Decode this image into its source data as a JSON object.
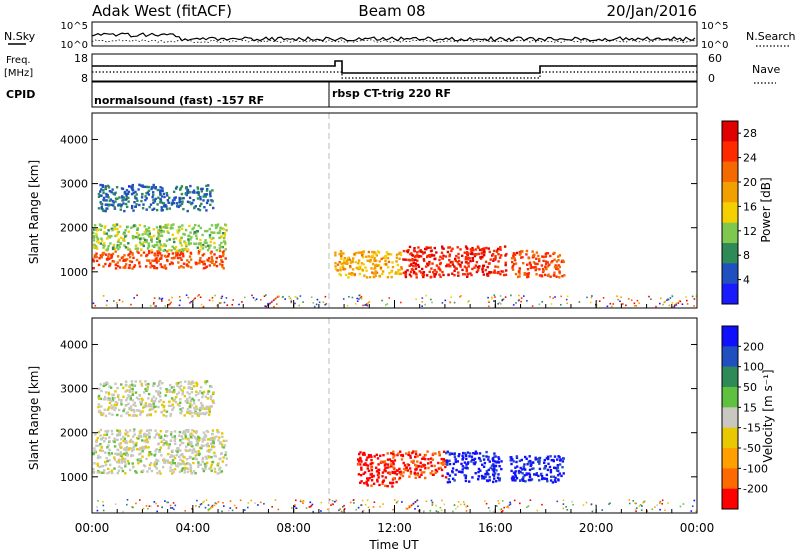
{
  "header": {
    "title_left": "Adak West (fitACF)",
    "title_center": "Beam 08",
    "title_right": "20/Jan/2016"
  },
  "nsky_panel": {
    "label_left": "N.Sky",
    "label_right": "N.Search",
    "left_ticks": [
      "10^5",
      "10^0"
    ],
    "right_ticks": [
      "10^5",
      "10^0"
    ]
  },
  "freq_panel": {
    "label_left_top": "Freq.",
    "label_left_unit": "[MHz]",
    "label_right": "Nave",
    "left_ticks": [
      "18",
      "8"
    ],
    "right_ticks": [
      "60",
      "0"
    ]
  },
  "cpid_panel": {
    "label": "CPID",
    "programs": [
      "normalsound (fast) -157 RF",
      "rbsp CT-trig 220 RF"
    ]
  },
  "colors": {
    "power": [
      "#1a1aff",
      "#2050c0",
      "#2e8b57",
      "#7ec850",
      "#f5d000",
      "#f2a000",
      "#f56a00",
      "#ff2a00",
      "#e00000"
    ],
    "velocity": [
      "#ff0000",
      "#ff6a00",
      "#ffa000",
      "#e8c800",
      "#c8c8c0",
      "#60c040",
      "#2e8b57",
      "#2050c0",
      "#1010ff"
    ]
  },
  "chart_data": [
    {
      "type": "heatmap",
      "name": "power",
      "ylabel": "Slant Range [km]",
      "xlabel": "Time UT",
      "x_ticks": [
        "00:00",
        "04:00",
        "08:00",
        "12:00",
        "16:00",
        "20:00",
        "00:00"
      ],
      "xlim_hours": [
        0,
        24
      ],
      "y_ticks": [
        1000,
        2000,
        3000,
        4000
      ],
      "ylim_km": [
        180,
        4600
      ],
      "colorbar": {
        "label": "Power [dB]",
        "ticks": [
          4,
          8,
          12,
          16,
          20,
          24,
          28
        ],
        "range": [
          0,
          30
        ]
      },
      "patches": [
        {
          "t": [
            0.0,
            5.3
          ],
          "r": [
            1100,
            1500
          ],
          "value": 24
        },
        {
          "t": [
            0.0,
            5.3
          ],
          "r": [
            1500,
            2100
          ],
          "value": 12
        },
        {
          "t": [
            0.2,
            4.8
          ],
          "r": [
            2400,
            3000
          ],
          "value": 6
        },
        {
          "t": [
            9.6,
            12.3
          ],
          "r": [
            900,
            1500
          ],
          "value": 18
        },
        {
          "t": [
            12.3,
            16.4
          ],
          "r": [
            900,
            1600
          ],
          "value": 26
        },
        {
          "t": [
            16.6,
            18.7
          ],
          "r": [
            900,
            1500
          ],
          "value": 24
        }
      ]
    },
    {
      "type": "heatmap",
      "name": "velocity",
      "ylabel": "Slant Range [km]",
      "xlabel": "Time UT",
      "x_ticks": [
        "00:00",
        "04:00",
        "08:00",
        "12:00",
        "16:00",
        "20:00",
        "00:00"
      ],
      "xlim_hours": [
        0,
        24
      ],
      "y_ticks": [
        1000,
        2000,
        3000,
        4000
      ],
      "ylim_km": [
        180,
        4600
      ],
      "colorbar": {
        "label": "Velocity [m s⁻¹]",
        "ticks": [
          "200",
          "100",
          "50",
          "15",
          "-15",
          "-50",
          "-100",
          "-200"
        ],
        "range": [
          -250,
          250
        ]
      },
      "patches": [
        {
          "t": [
            0.0,
            5.3
          ],
          "r": [
            1100,
            2100
          ],
          "value": 0
        },
        {
          "t": [
            0.2,
            4.8
          ],
          "r": [
            2400,
            3200
          ],
          "value": 0
        },
        {
          "t": [
            10.5,
            12.2
          ],
          "r": [
            800,
            1600
          ],
          "value": -220
        },
        {
          "t": [
            12.2,
            14.0
          ],
          "r": [
            1000,
            1600
          ],
          "value": -200
        },
        {
          "t": [
            14.0,
            16.2
          ],
          "r": [
            900,
            1600
          ],
          "value": 220
        },
        {
          "t": [
            16.5,
            18.7
          ],
          "r": [
            900,
            1500
          ],
          "value": 220
        }
      ]
    }
  ]
}
